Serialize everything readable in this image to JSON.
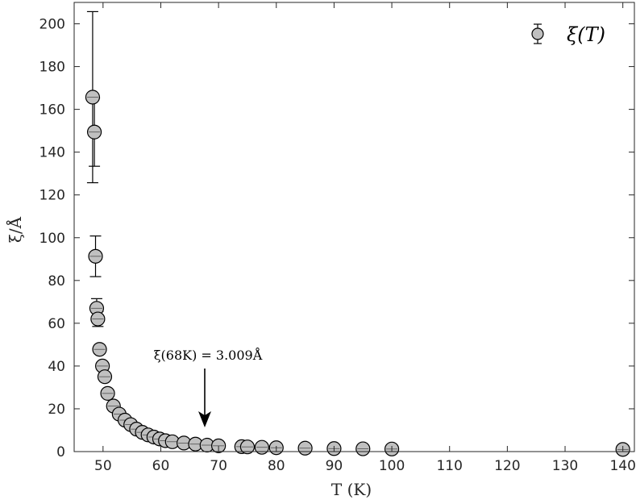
{
  "chart_data": {
    "type": "scatter",
    "title": "",
    "xlabel": "T (K)",
    "ylabel": "ξ/Å",
    "xlim": [
      45,
      142
    ],
    "ylim": [
      0,
      210
    ],
    "xticks": [
      50,
      60,
      70,
      80,
      90,
      100,
      110,
      120,
      130,
      140
    ],
    "yticks": [
      0,
      20,
      40,
      60,
      80,
      100,
      120,
      140,
      160,
      180,
      200
    ],
    "grid": false,
    "legend_position": "top-right",
    "marker_color": "#c0c0c0",
    "series": [
      {
        "name": "ξ(T)",
        "points": [
          {
            "x": 48.2,
            "y": 165.7,
            "err": 40
          },
          {
            "x": 48.5,
            "y": 149.4,
            "err": 16
          },
          {
            "x": 48.7,
            "y": 91.3,
            "err": 9.5
          },
          {
            "x": 48.9,
            "y": 67.0,
            "err": 4.5
          },
          {
            "x": 49.1,
            "y": 62.0,
            "err": 3.5
          },
          {
            "x": 49.4,
            "y": 47.8,
            "err": 2
          },
          {
            "x": 49.9,
            "y": 40.0,
            "err": 1.5
          },
          {
            "x": 50.3,
            "y": 35.0,
            "err": 1.3
          },
          {
            "x": 50.8,
            "y": 27.2,
            "err": 1
          },
          {
            "x": 51.8,
            "y": 21.3,
            "err": 0.8
          },
          {
            "x": 52.8,
            "y": 17.5,
            "err": 0.7
          },
          {
            "x": 53.8,
            "y": 14.7,
            "err": 0.6
          },
          {
            "x": 54.8,
            "y": 12.6,
            "err": 0.5
          },
          {
            "x": 55.8,
            "y": 10.5,
            "err": 0.5
          },
          {
            "x": 56.8,
            "y": 9.0,
            "err": 0.4
          },
          {
            "x": 57.8,
            "y": 7.8,
            "err": 0.4
          },
          {
            "x": 58.8,
            "y": 6.8,
            "err": 0.3
          },
          {
            "x": 59.8,
            "y": 5.9,
            "err": 0.3
          },
          {
            "x": 60.8,
            "y": 5.1,
            "err": 0.3
          },
          {
            "x": 62.0,
            "y": 4.6,
            "err": 0.3
          },
          {
            "x": 64.0,
            "y": 4.0,
            "err": 0.2
          },
          {
            "x": 66.0,
            "y": 3.5,
            "err": 0.2
          },
          {
            "x": 68.0,
            "y": 3.009,
            "err": 0.2
          },
          {
            "x": 70.0,
            "y": 2.7,
            "err": 0.2
          },
          {
            "x": 74.0,
            "y": 2.3,
            "err": 0.2
          },
          {
            "x": 75.0,
            "y": 2.2,
            "err": 0.2
          },
          {
            "x": 77.5,
            "y": 2.0,
            "err": 0.2
          },
          {
            "x": 80.0,
            "y": 1.8,
            "err": 0.2
          },
          {
            "x": 85.0,
            "y": 1.6,
            "err": 0.2
          },
          {
            "x": 90.0,
            "y": 1.4,
            "err": 0.2
          },
          {
            "x": 95.0,
            "y": 1.3,
            "err": 0.2
          },
          {
            "x": 100.0,
            "y": 1.2,
            "err": 0.2
          },
          {
            "x": 140.0,
            "y": 1.0,
            "err": 0.2
          }
        ]
      }
    ],
    "annotations": [
      {
        "text": "ξ(68K) = 3.009Å",
        "x": 68,
        "y": 3.009,
        "arrow": true
      }
    ]
  }
}
